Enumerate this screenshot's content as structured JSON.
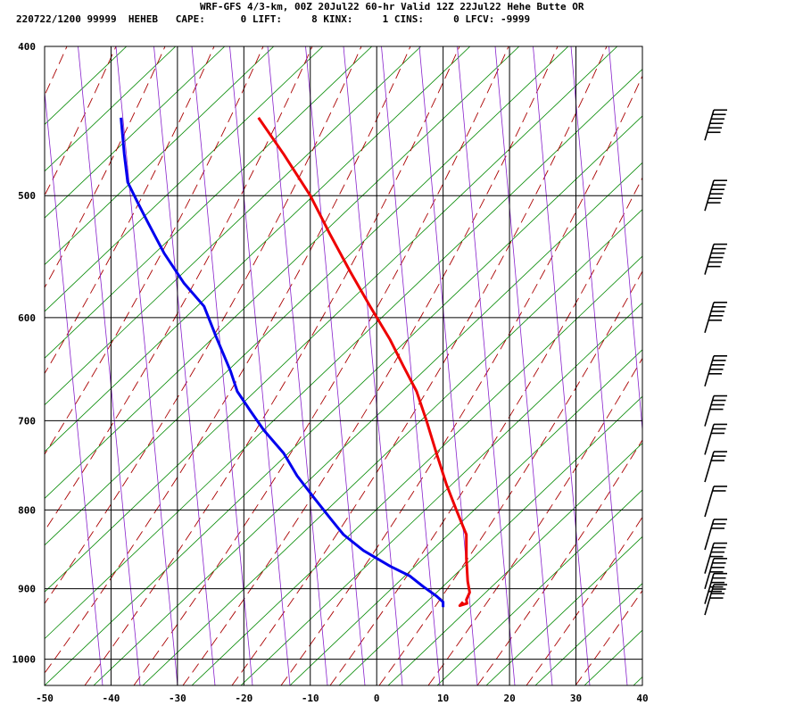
{
  "header": {
    "line1": "WRF-GFS 4/3-km, 00Z 20Jul22 60-hr Valid 12Z 22Jul22 Hehe Butte OR",
    "line2": "220722/1200 99999  HEHEB   CAPE:      0 LIFT:     8 KINX:     1 CINS:     0 LFCV: -9999"
  },
  "colors": {
    "temperature": "#ee0000",
    "dewpoint": "#0000ee",
    "isotherm_grid": "#000000",
    "dry_adiabat": "#008800",
    "moist_adiabat": "#aa0000",
    "mixing_ratio": "#8822cc",
    "wind_barb": "#000000"
  },
  "chart_data": {
    "type": "line",
    "title": "",
    "xlabel": "",
    "ylabel": "",
    "x_ticks": [
      -50,
      -40,
      -30,
      -20,
      -10,
      0,
      10,
      20,
      30,
      40
    ],
    "y_ticks": [
      400,
      500,
      600,
      700,
      800,
      900,
      1000
    ],
    "xlim": [
      -50,
      40
    ],
    "ylim": [
      1040,
      400
    ],
    "y_scale": "log-pressure",
    "grid": true,
    "series": [
      {
        "key": "temperature",
        "points": [
          [
            -17.8,
            445
          ],
          [
            -14,
            470
          ],
          [
            -10,
            500
          ],
          [
            -7,
            530
          ],
          [
            -4,
            560
          ],
          [
            -1,
            590
          ],
          [
            2,
            620
          ],
          [
            4,
            645
          ],
          [
            6,
            670
          ],
          [
            7.5,
            700
          ],
          [
            9,
            735
          ],
          [
            10.5,
            770
          ],
          [
            12,
            800
          ],
          [
            13,
            820
          ],
          [
            13.5,
            830
          ],
          [
            13.5,
            860
          ],
          [
            13.7,
            890
          ],
          [
            14,
            905
          ],
          [
            13.5,
            915
          ],
          [
            13.6,
            920
          ],
          [
            12.5,
            923
          ],
          [
            13,
            918
          ]
        ]
      },
      {
        "key": "dewpoint",
        "points": [
          [
            -38.5,
            445
          ],
          [
            -38,
            470
          ],
          [
            -37.5,
            490
          ],
          [
            -36,
            505
          ],
          [
            -34.5,
            520
          ],
          [
            -32,
            545
          ],
          [
            -29,
            570
          ],
          [
            -26,
            590
          ],
          [
            -24,
            620
          ],
          [
            -22,
            650
          ],
          [
            -21,
            670
          ],
          [
            -19,
            690
          ],
          [
            -17,
            710
          ],
          [
            -14,
            735
          ],
          [
            -12,
            760
          ],
          [
            -9.5,
            785
          ],
          [
            -7,
            810
          ],
          [
            -5,
            830
          ],
          [
            -2,
            850
          ],
          [
            2,
            870
          ],
          [
            5,
            883
          ],
          [
            7,
            897
          ],
          [
            9,
            910
          ],
          [
            10,
            918
          ],
          [
            10,
            925
          ]
        ]
      }
    ],
    "wind_barbs": [
      {
        "p": 450,
        "speed": 65
      },
      {
        "p": 500,
        "speed": 70
      },
      {
        "p": 550,
        "speed": 55
      },
      {
        "p": 600,
        "speed": 50
      },
      {
        "p": 650,
        "speed": 45
      },
      {
        "p": 690,
        "speed": 40
      },
      {
        "p": 720,
        "speed": 30
      },
      {
        "p": 750,
        "speed": 25
      },
      {
        "p": 790,
        "speed": 20
      },
      {
        "p": 830,
        "speed": 30
      },
      {
        "p": 860,
        "speed": 35
      },
      {
        "p": 880,
        "speed": 40
      },
      {
        "p": 900,
        "speed": 45
      },
      {
        "p": 915,
        "speed": 40
      }
    ]
  }
}
